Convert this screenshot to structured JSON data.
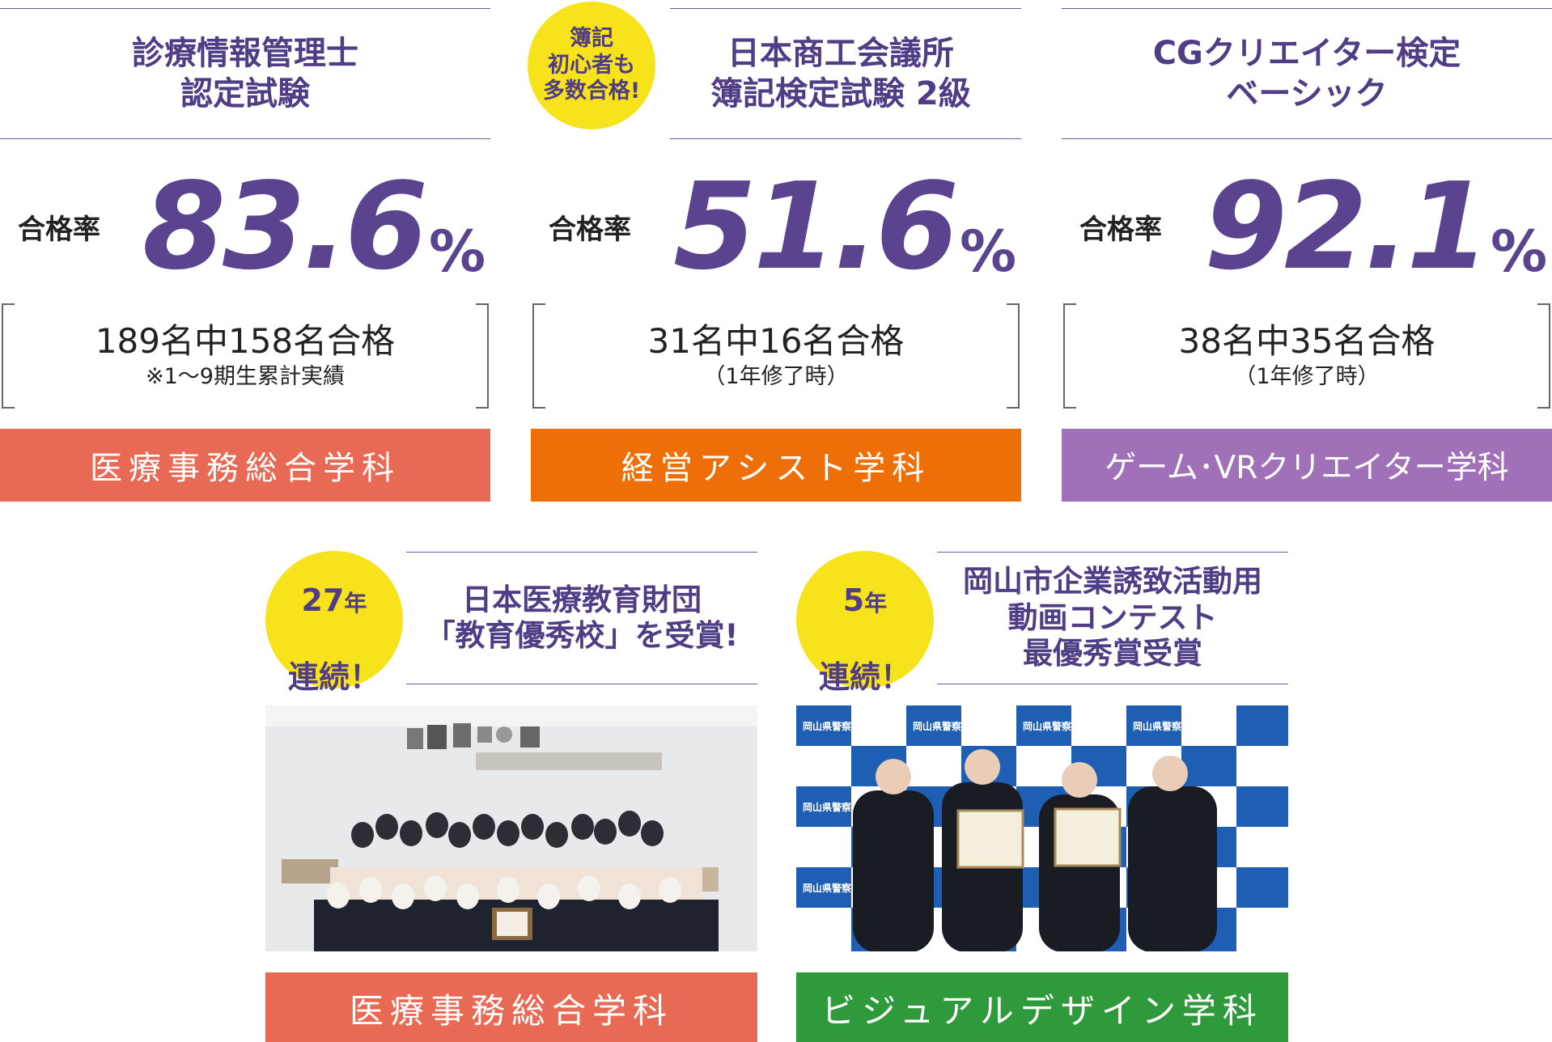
{
  "cards": [
    {
      "exam": "診療情報管理士\n認定試験",
      "badge": "",
      "rate_label": "合格率",
      "rate": "83.6",
      "unit": "%",
      "count": "189名中158名合格",
      "note": "※1～9期生累計実績",
      "department": "医療事務総合学科",
      "color": "#e86a55"
    },
    {
      "exam": "日本商工会議所\n簿記検定試験 2級",
      "badge": "簿記\n初心者も\n多数合格!",
      "rate_label": "合格率",
      "rate": "51.6",
      "unit": "%",
      "count": "31名中16名合格",
      "note": "（1年修了時）",
      "department": "経営アシスト学科",
      "color": "#ee6f07"
    },
    {
      "exam": "CGクリエイター検定\nベーシック",
      "badge": "",
      "rate_label": "合格率",
      "rate": "92.1",
      "unit": "%",
      "count": "38名中35名合格",
      "note": "（1年修了時）",
      "department": "ゲーム･VRクリエイター学科",
      "color": "#a070b8"
    }
  ],
  "awards": [
    {
      "badge_years": "27",
      "badge_year_unit": "年",
      "badge_text": "連続！",
      "title": "日本医療教育財団\n「教育優秀校」を受賞!",
      "department": "医療事務総合学科",
      "color": "#e86a55",
      "photo": "group-photo"
    },
    {
      "badge_years": "5",
      "badge_year_unit": "年",
      "badge_text": "連続！",
      "title": "岡山市企業誘致活動用\n動画コンテスト\n最優秀賞受賞",
      "department": "ビジュアルデザイン学科",
      "color": "#2f9a3c",
      "photo": "award-ceremony-photo",
      "backdrop_text": "岡山県警察"
    }
  ]
}
